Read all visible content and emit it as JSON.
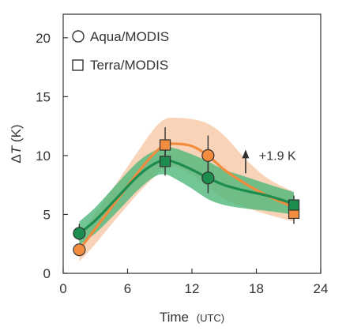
{
  "chart_data": {
    "type": "line",
    "xlabel": "Time",
    "xlabel_unit": "(UTC)",
    "ylabel": "ΔT (K)",
    "ylabel_symbol": "T",
    "ylabel_prefix": "Δ",
    "ylabel_suffix": " (K)",
    "xlim": [
      0,
      24
    ],
    "ylim": [
      0,
      22
    ],
    "xticks": [
      0,
      6,
      12,
      18,
      24
    ],
    "yticks": [
      0,
      5,
      10,
      15,
      20
    ],
    "grid": false,
    "legend_placement": "top-left",
    "legend": [
      {
        "label": "Aqua/MODIS",
        "marker": "circle"
      },
      {
        "label": "Terra/MODIS",
        "marker": "square"
      }
    ],
    "annotation": {
      "text": "+1.9 K",
      "arrow": "up",
      "x": 17.0,
      "y_from": 8.5,
      "y_to": 10.3
    },
    "series": [
      {
        "color": "#f28c3e",
        "band_color": "#f7c4a0",
        "curve": {
          "x": [
            1.5,
            3,
            5,
            7,
            8.5,
            9.5,
            10.5,
            12,
            13.5,
            15,
            17,
            19,
            21.5
          ],
          "y": [
            2.0,
            3.8,
            6.2,
            8.6,
            10.2,
            10.9,
            11.0,
            10.8,
            10.0,
            8.8,
            7.6,
            6.6,
            5.6
          ],
          "lower": [
            1.0,
            2.5,
            4.7,
            6.8,
            8.2,
            9.0,
            9.0,
            8.4,
            7.3,
            6.3,
            5.6,
            5.0,
            4.4
          ],
          "upper": [
            3.1,
            5.1,
            7.7,
            10.4,
            12.3,
            13.1,
            13.2,
            13.1,
            12.7,
            11.7,
            9.7,
            8.1,
            6.9
          ]
        },
        "points": [
          {
            "x": 1.5,
            "y": 2.0,
            "marker": "circle",
            "err": null
          },
          {
            "x": 9.5,
            "y": 10.9,
            "marker": "square",
            "err": [
              9.4,
              12.4
            ]
          },
          {
            "x": 13.5,
            "y": 10.0,
            "marker": "circle",
            "err": [
              8.2,
              11.7
            ]
          },
          {
            "x": 21.5,
            "y": 5.1,
            "marker": "square",
            "err": [
              4.2,
              6.1
            ]
          }
        ]
      },
      {
        "color": "#1d8c4f",
        "band_color": "#4fb87a",
        "curve": {
          "x": [
            1.5,
            3,
            5,
            7,
            8.5,
            9.5,
            10.5,
            12,
            13.5,
            15,
            17,
            19,
            21.5
          ],
          "y": [
            3.4,
            4.5,
            6.4,
            8.3,
            9.3,
            9.6,
            9.4,
            8.8,
            8.1,
            7.5,
            7.0,
            6.6,
            5.9
          ],
          "lower": [
            2.4,
            3.4,
            5.2,
            7.1,
            8.2,
            8.4,
            8.0,
            7.2,
            6.3,
            5.8,
            5.5,
            5.3,
            5.0
          ],
          "upper": [
            4.4,
            5.6,
            7.6,
            9.5,
            10.4,
            10.7,
            10.6,
            10.1,
            9.5,
            8.8,
            8.2,
            7.6,
            6.9
          ]
        },
        "points": [
          {
            "x": 1.5,
            "y": 3.4,
            "marker": "circle",
            "err": [
              2.8,
              4.2
            ]
          },
          {
            "x": 9.5,
            "y": 9.5,
            "marker": "square",
            "err": [
              8.3,
              10.6
            ]
          },
          {
            "x": 13.5,
            "y": 8.1,
            "marker": "circle",
            "err": [
              6.8,
              9.3
            ]
          },
          {
            "x": 21.5,
            "y": 5.8,
            "marker": "square",
            "err": [
              4.8,
              6.6
            ]
          }
        ]
      }
    ]
  }
}
